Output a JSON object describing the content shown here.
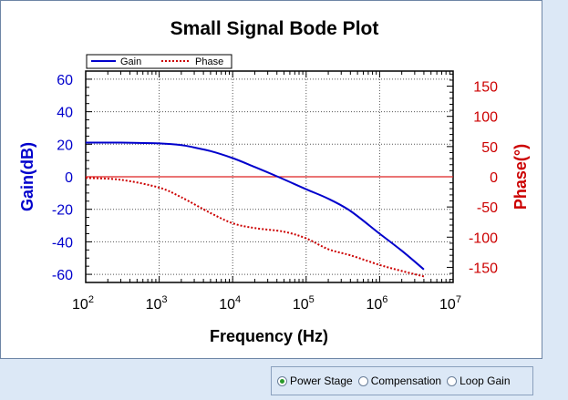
{
  "chart_data": {
    "type": "line",
    "title": "Small Signal Bode Plot",
    "xlabel": "Frequency (Hz)",
    "ylabel": "Gain(dB)",
    "y2label": "Phase(°)",
    "xscale": "log",
    "xlim": [
      100,
      10000000
    ],
    "ylim": [
      -65,
      65
    ],
    "y2lim": [
      -175,
      175
    ],
    "x_ticks": [
      {
        "base": "10",
        "exp": "2",
        "value": 100
      },
      {
        "base": "10",
        "exp": "3",
        "value": 1000
      },
      {
        "base": "10",
        "exp": "4",
        "value": 10000
      },
      {
        "base": "10",
        "exp": "5",
        "value": 100000
      },
      {
        "base": "10",
        "exp": "6",
        "value": 1000000
      },
      {
        "base": "10",
        "exp": "7",
        "value": 10000000
      }
    ],
    "y_ticks": [
      60,
      40,
      20,
      0,
      -20,
      -40,
      -60
    ],
    "y2_ticks": [
      150,
      100,
      50,
      0,
      -50,
      -100,
      -150
    ],
    "grid": true,
    "legend_position": "top-left",
    "colors": {
      "gain": "#0000cc",
      "phase": "#cc0000",
      "zero_line": "#dd2222",
      "grid": "#555555"
    },
    "series": [
      {
        "name": "Gain",
        "axis": "left",
        "style": "solid",
        "x": [
          100,
          300,
          1000,
          2000,
          3000,
          5000,
          10000,
          20000,
          40000,
          100000,
          200000,
          400000,
          1000000,
          2000000,
          4000000
        ],
        "y": [
          21,
          21,
          20.5,
          19.5,
          18,
          15.8,
          11.5,
          6,
          0.3,
          -7.7,
          -13.5,
          -21,
          -35,
          -45.5,
          -57
        ]
      },
      {
        "name": "Phase",
        "axis": "right",
        "style": "dotted",
        "x": [
          100,
          300,
          1000,
          2000,
          5000,
          10000,
          20000,
          50000,
          100000,
          200000,
          400000,
          1000000,
          2000000,
          4000000
        ],
        "y": [
          -2,
          -5,
          -18,
          -34,
          -60,
          -77,
          -85,
          -91,
          -102,
          -120,
          -130,
          -146,
          -156,
          -165
        ]
      }
    ]
  },
  "controls": {
    "options": [
      {
        "label": "Power Stage",
        "selected": true
      },
      {
        "label": "Compensation",
        "selected": false
      },
      {
        "label": "Loop Gain",
        "selected": false
      }
    ]
  }
}
